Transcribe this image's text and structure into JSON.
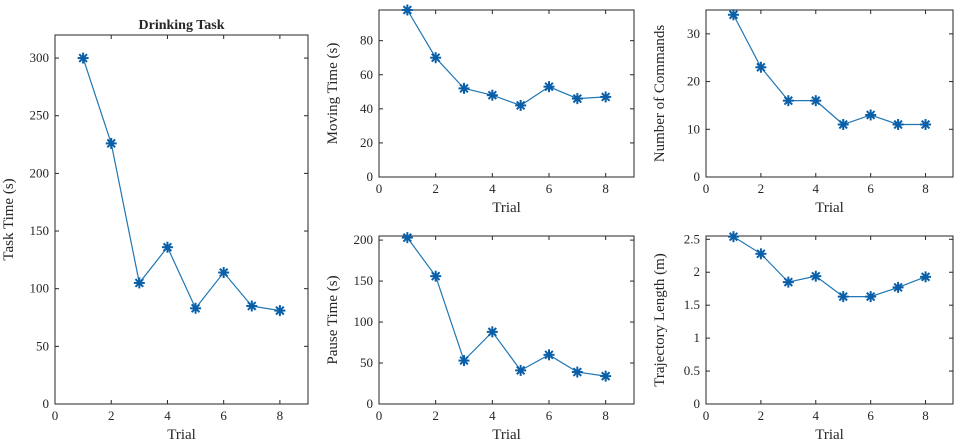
{
  "figure_title": "Drinking Task",
  "chart_data": [
    {
      "id": "task-time",
      "type": "line",
      "title": "Drinking Task",
      "xlabel": "Trial",
      "ylabel": "Task Time (s)",
      "xlim": [
        0,
        9
      ],
      "ylim": [
        0,
        320
      ],
      "xticks": [
        0,
        2,
        4,
        6,
        8
      ],
      "yticks": [
        0,
        50,
        100,
        150,
        200,
        250,
        300
      ],
      "x": [
        1,
        2,
        3,
        4,
        5,
        6,
        7,
        8
      ],
      "values": [
        300,
        226,
        105,
        136,
        83,
        114,
        85,
        81
      ],
      "color": "#1f77b4",
      "marker": "asterisk"
    },
    {
      "id": "moving-time",
      "type": "line",
      "title": "",
      "xlabel": "Trial",
      "ylabel": "Moving Time (s)",
      "xlim": [
        0,
        9
      ],
      "ylim": [
        0,
        98
      ],
      "xticks": [
        0,
        2,
        4,
        6,
        8
      ],
      "yticks": [
        0,
        20,
        40,
        60,
        80
      ],
      "x": [
        1,
        2,
        3,
        4,
        5,
        6,
        7,
        8
      ],
      "values": [
        98,
        70,
        52,
        48,
        42,
        53,
        46,
        47
      ],
      "color": "#1f77b4",
      "marker": "asterisk"
    },
    {
      "id": "num-commands",
      "type": "line",
      "title": "",
      "xlabel": "Trial",
      "ylabel": "Number of Commands",
      "xlim": [
        0,
        9
      ],
      "ylim": [
        0,
        35
      ],
      "xticks": [
        0,
        2,
        4,
        6,
        8
      ],
      "yticks": [
        0,
        10,
        20,
        30
      ],
      "x": [
        1,
        2,
        3,
        4,
        5,
        6,
        7,
        8
      ],
      "values": [
        34,
        23,
        16,
        16,
        11,
        13,
        11,
        11
      ],
      "color": "#1f77b4",
      "marker": "asterisk"
    },
    {
      "id": "pause-time",
      "type": "line",
      "title": "",
      "xlabel": "Trial",
      "ylabel": "Pause Time (s)",
      "xlim": [
        0,
        9
      ],
      "ylim": [
        0,
        205
      ],
      "xticks": [
        0,
        2,
        4,
        6,
        8
      ],
      "yticks": [
        0,
        50,
        100,
        150,
        200
      ],
      "x": [
        1,
        2,
        3,
        4,
        5,
        6,
        7,
        8
      ],
      "values": [
        203,
        156,
        53,
        88,
        41,
        60,
        39,
        34
      ],
      "color": "#1f77b4",
      "marker": "asterisk"
    },
    {
      "id": "trajectory-length",
      "type": "line",
      "title": "",
      "xlabel": "Trial",
      "ylabel": "Trajectory Length (m)",
      "xlim": [
        0,
        9
      ],
      "ylim": [
        0,
        2.55
      ],
      "xticks": [
        0,
        2,
        4,
        6,
        8
      ],
      "yticks": [
        0,
        0.5,
        1,
        1.5,
        2,
        2.5
      ],
      "x": [
        1,
        2,
        3,
        4,
        5,
        6,
        7,
        8
      ],
      "values": [
        2.54,
        2.28,
        1.85,
        1.94,
        1.63,
        1.63,
        1.77,
        1.93
      ],
      "color": "#1f77b4",
      "marker": "asterisk"
    }
  ]
}
